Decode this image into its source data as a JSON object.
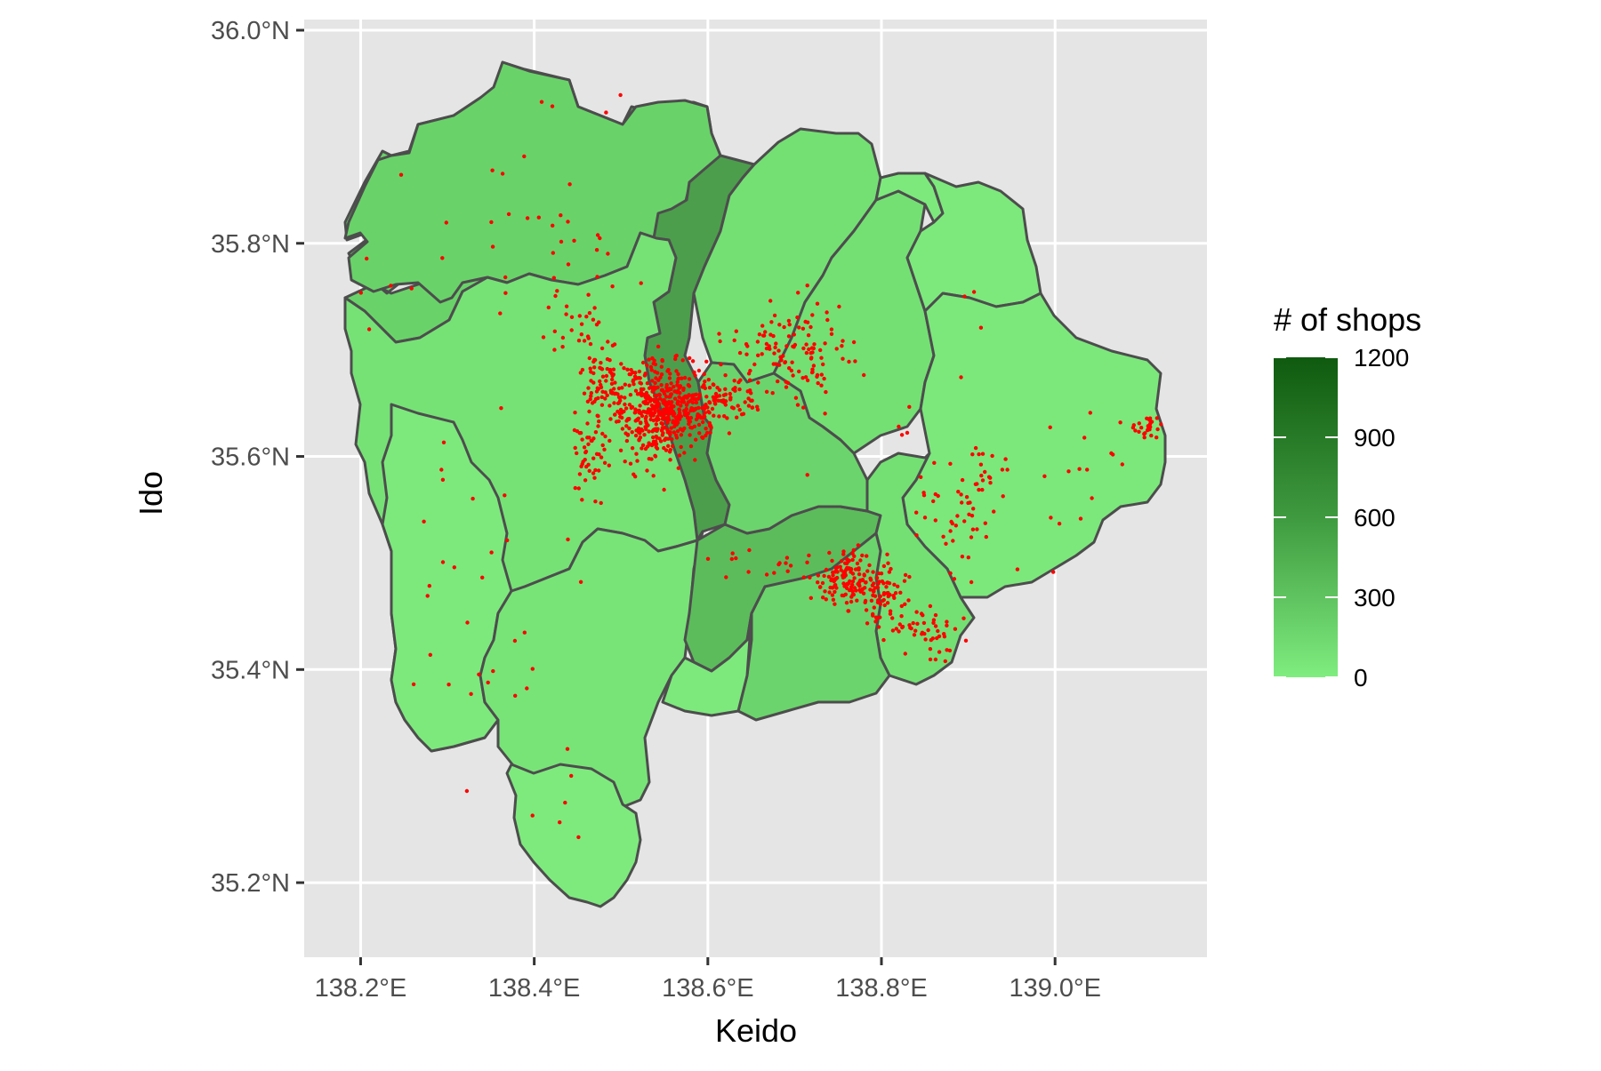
{
  "map": {
    "x_axis_title": "Keido",
    "y_axis_title": "Ido",
    "x_ticks": [
      "138.2°E",
      "138.4°E",
      "138.6°E",
      "138.8°E",
      "139.0°E"
    ],
    "y_ticks": [
      "36.0°N",
      "35.8°N",
      "35.6°N",
      "35.4°N",
      "35.2°N"
    ],
    "x_tick_values": [
      138.2,
      138.4,
      138.6,
      138.8,
      139.0
    ],
    "y_tick_values": [
      36.0,
      35.8,
      35.6,
      35.4,
      35.2
    ],
    "x_range": [
      138.135,
      139.175
    ],
    "y_range": [
      35.13,
      36.01
    ],
    "panel_background": "#e5e5e5",
    "gridline_color": "#ffffff",
    "boundary_color": "#4d4d4d",
    "point_color": "#ff0000"
  },
  "legend": {
    "title": "# of shops",
    "labels": [
      "1200",
      "900",
      "600",
      "300",
      "0"
    ],
    "values": [
      1200,
      900,
      600,
      300,
      0
    ],
    "range": [
      0,
      1200
    ],
    "color_low": "#7FED7F",
    "color_high": "#0F5A0F"
  },
  "regions": [
    {
      "id": "north-west",
      "shops": 160,
      "color": "#69D369"
    },
    {
      "id": "kofu",
      "shops": 1150,
      "color": "#4C9E4C"
    },
    {
      "id": "north-central",
      "shops": 90,
      "color": "#74E074"
    },
    {
      "id": "north-east",
      "shops": 40,
      "color": "#7DE97D"
    },
    {
      "id": "north-east-small",
      "shops": 35,
      "color": "#7DE97D"
    },
    {
      "id": "far-east",
      "shops": 45,
      "color": "#7CE87C"
    },
    {
      "id": "west",
      "shops": 70,
      "color": "#76E276"
    },
    {
      "id": "south-west",
      "shops": 30,
      "color": "#7DE97D"
    },
    {
      "id": "central-south",
      "shops": 60,
      "color": "#78E478"
    },
    {
      "id": "south",
      "shops": 25,
      "color": "#7EEA7E"
    },
    {
      "id": "south-central",
      "shops": 260,
      "color": "#5CBC5C"
    },
    {
      "id": "fuji",
      "shops": 140,
      "color": "#6CD46C"
    }
  ]
}
